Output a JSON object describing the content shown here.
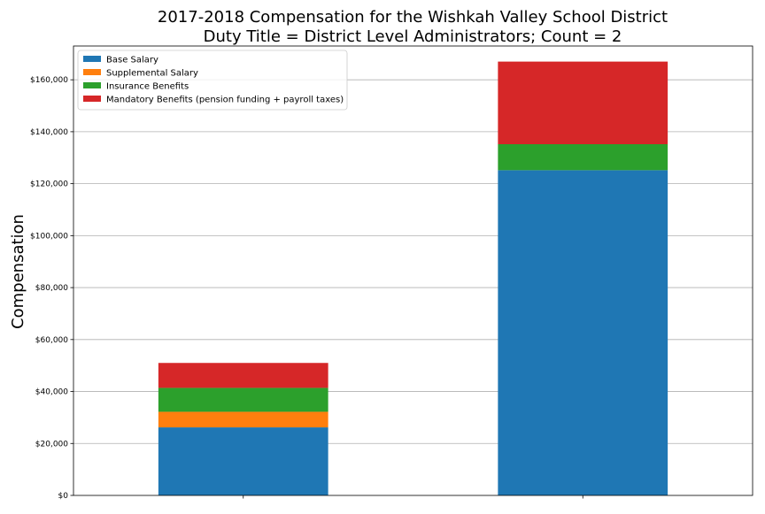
{
  "chart_data": {
    "type": "bar",
    "stacked": true,
    "title": [
      "2017-2018 Compensation for the Wishkah Valley School District",
      "Duty Title = District Level Administrators; Count = 2"
    ],
    "xlabel": "",
    "ylabel": "Compensation",
    "categories": [
      "",
      ""
    ],
    "ylim": [
      0,
      173000
    ],
    "yticks": [
      0,
      20000,
      40000,
      60000,
      80000,
      100000,
      120000,
      140000,
      160000
    ],
    "ytick_labels": [
      "$0",
      "$20,000",
      "$40,000",
      "$60,000",
      "$80,000",
      "$100,000",
      "$120,000",
      "$140,000",
      "$160,000"
    ],
    "grid": "y",
    "legend_position": "top-left",
    "series": [
      {
        "name": "Base Salary",
        "color": "#1f77b4",
        "values": [
          26200,
          125200
        ]
      },
      {
        "name": "Supplemental Salary",
        "color": "#ff7f0e",
        "values": [
          6000,
          0
        ]
      },
      {
        "name": "Insurance Benefits",
        "color": "#2ca02c",
        "values": [
          9200,
          10000
        ]
      },
      {
        "name": "Mandatory Benefits (pension funding + payroll taxes)",
        "color": "#d62728",
        "values": [
          9600,
          31800
        ]
      }
    ]
  }
}
